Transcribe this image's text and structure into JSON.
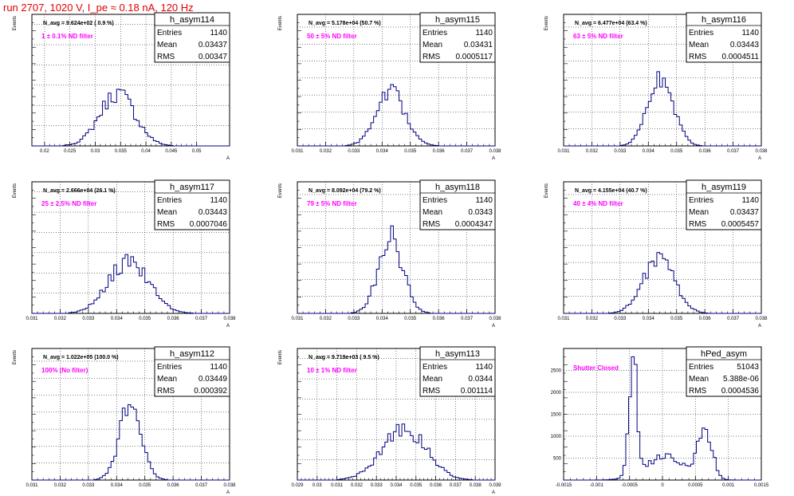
{
  "page": {
    "title": "run 2707,  1020 V, I_pe ≈ 0.18 nA, 120 Hz"
  },
  "colors": {
    "histogram_line": "#000080",
    "filter_text": "#ff00ff",
    "title_text": "#e00000",
    "frame": "#000000",
    "grid": "#000000"
  },
  "chart_data": [
    {
      "type": "histogram",
      "hist_name": "h_asym114",
      "navg": "N_avg = 9.624e+02 ( 0.9 %)",
      "filter_label": "1 ± 0.1% ND filter",
      "stats": {
        "entries_label": "Entries",
        "entries": "1140",
        "mean_label": "Mean",
        "mean": "0.03437",
        "rms_label": "RMS",
        "rms": "0.00347"
      },
      "ylabel": "Events",
      "xlabel": "A",
      "xlim": [
        0.0175,
        0.0565
      ],
      "x_ticks": [
        "0.02",
        "0.025",
        "0.03",
        "0.035",
        "0.04",
        "0.045",
        "0.05"
      ],
      "x_tick_values": [
        0.02,
        0.025,
        0.03,
        0.035,
        0.04,
        0.045,
        0.05
      ],
      "ylim": [
        0,
        130
      ],
      "grid": true,
      "peak": 52,
      "mean": 0.03437,
      "rms": 0.00347
    },
    {
      "type": "histogram",
      "hist_name": "h_asym115",
      "navg": "N_avg = 5.178e+04 (50.7 %)",
      "filter_label": "50 ± 5% ND filter",
      "stats": {
        "entries_label": "Entries",
        "entries": "1140",
        "mean_label": "Mean",
        "mean": "0.03431",
        "rms_label": "RMS",
        "rms": "0.0005117"
      },
      "ylabel": "Events",
      "xlabel": "A",
      "xlim": [
        0.031,
        0.038
      ],
      "x_ticks": [
        "0.031",
        "0.032",
        "0.033",
        "0.034",
        "0.035",
        "0.036",
        "0.037",
        "0.038"
      ],
      "x_tick_values": [
        0.031,
        0.032,
        0.033,
        0.034,
        0.035,
        0.036,
        0.037,
        0.038
      ],
      "ylim": [
        0,
        155
      ],
      "grid": true,
      "peak": 62,
      "mean": 0.03431,
      "rms": 0.0005117
    },
    {
      "type": "histogram",
      "hist_name": "h_asym116",
      "navg": "N_avg = 6.477e+04 (63.4 %)",
      "filter_label": "63 ± 5% ND filter",
      "stats": {
        "entries_label": "Entries",
        "entries": "1140",
        "mean_label": "Mean",
        "mean": "0.03443",
        "rms_label": "RMS",
        "rms": "0.0004511"
      },
      "ylabel": "Events",
      "xlabel": "A",
      "xlim": [
        0.031,
        0.038
      ],
      "x_ticks": [
        "0.031",
        "0.032",
        "0.033",
        "0.034",
        "0.035",
        "0.036",
        "0.037",
        "0.038"
      ],
      "x_tick_values": [
        0.031,
        0.032,
        0.033,
        0.034,
        0.035,
        0.036,
        0.037,
        0.038
      ],
      "ylim": [
        0,
        155
      ],
      "grid": true,
      "peak": 80,
      "mean": 0.03443,
      "rms": 0.0004511
    },
    {
      "type": "histogram",
      "hist_name": "h_asym117",
      "navg": "N_avg = 2.666e+04 (26.1 %)",
      "filter_label": "25 ± 2.5% ND filter",
      "stats": {
        "entries_label": "Entries",
        "entries": "1140",
        "mean_label": "Mean",
        "mean": "0.03443",
        "rms_label": "RMS",
        "rms": "0.0007046"
      },
      "ylabel": "Events",
      "xlabel": "A",
      "xlim": [
        0.031,
        0.038
      ],
      "x_ticks": [
        "0.031",
        "0.032",
        "0.033",
        "0.034",
        "0.035",
        "0.036",
        "0.037",
        "0.038"
      ],
      "x_tick_values": [
        0.031,
        0.032,
        0.033,
        0.034,
        0.035,
        0.036,
        0.037,
        0.038
      ],
      "ylim": [
        0,
        130
      ],
      "grid": true,
      "peak": 52,
      "mean": 0.03443,
      "rms": 0.0007046
    },
    {
      "type": "histogram",
      "hist_name": "h_asym118",
      "navg": "N_avg = 8.092e+04 (79.2 %)",
      "filter_label": "79 ± 5% ND filter",
      "stats": {
        "entries_label": "Entries",
        "entries": "1140",
        "mean_label": "Mean",
        "mean": "0.0343",
        "rms_label": "RMS",
        "rms": "0.0004347"
      },
      "ylabel": "Events",
      "xlabel": "A",
      "xlim": [
        0.031,
        0.038
      ],
      "x_ticks": [
        "0.031",
        "0.032",
        "0.033",
        "0.034",
        "0.035",
        "0.036",
        "0.037",
        "0.038"
      ],
      "x_tick_values": [
        0.031,
        0.032,
        0.033,
        0.034,
        0.035,
        0.036,
        0.037,
        0.038
      ],
      "ylim": [
        0,
        155
      ],
      "grid": true,
      "peak": 88,
      "mean": 0.0343,
      "rms": 0.0004347
    },
    {
      "type": "histogram",
      "hist_name": "h_asym119",
      "navg": "N_avg = 4.155e+04 (40.7 %)",
      "filter_label": "40 ± 4% ND filter",
      "stats": {
        "entries_label": "Entries",
        "entries": "1140",
        "mean_label": "Mean",
        "mean": "0.03437",
        "rms_label": "RMS",
        "rms": "0.0005457"
      },
      "ylabel": "Events",
      "xlabel": "A",
      "xlim": [
        0.031,
        0.038
      ],
      "x_ticks": [
        "0.031",
        "0.032",
        "0.033",
        "0.034",
        "0.035",
        "0.036",
        "0.037",
        "0.038"
      ],
      "x_tick_values": [
        0.031,
        0.032,
        0.033,
        0.034,
        0.035,
        0.036,
        0.037,
        0.038
      ],
      "ylim": [
        0,
        155
      ],
      "grid": true,
      "peak": 66,
      "mean": 0.03437,
      "rms": 0.0005457
    },
    {
      "type": "histogram",
      "hist_name": "h_asym112",
      "navg": "N_avg = 1.022e+05 (100.0 %)",
      "filter_label": "100% (No filter)",
      "stats": {
        "entries_label": "Entries",
        "entries": "1140",
        "mean_label": "Mean",
        "mean": "0.03449",
        "rms_label": "RMS",
        "rms": "0.000392"
      },
      "ylabel": "Events",
      "xlabel": "A",
      "xlim": [
        0.031,
        0.038
      ],
      "x_ticks": [
        "0.031",
        "0.032",
        "0.033",
        "0.034",
        "0.035",
        "0.036",
        "0.037",
        "0.038"
      ],
      "x_tick_values": [
        0.031,
        0.032,
        0.033,
        0.034,
        0.035,
        0.036,
        0.037,
        0.038
      ],
      "ylim": [
        0,
        155
      ],
      "grid": true,
      "peak": 87,
      "mean": 0.03449,
      "rms": 0.000392
    },
    {
      "type": "histogram",
      "hist_name": "h_asym113",
      "navg": "N_avg = 9.719e+03 ( 9.5 %)",
      "filter_label": "10 ± 1% ND filter",
      "stats": {
        "entries_label": "Entries",
        "entries": "1140",
        "mean_label": "Mean",
        "mean": "0.0344",
        "rms_label": "RMS",
        "rms": "0.001114"
      },
      "ylabel": "Events",
      "xlabel": "A",
      "xlim": [
        0.029,
        0.039
      ],
      "x_ticks": [
        "0.029",
        "0.03",
        "0.031",
        "0.032",
        "0.033",
        "0.034",
        "0.035",
        "0.036",
        "0.037",
        "0.038",
        "0.039"
      ],
      "x_tick_values": [
        0.029,
        0.03,
        0.031,
        0.032,
        0.033,
        0.034,
        0.035,
        0.036,
        0.037,
        0.038,
        0.039
      ],
      "ylim": [
        0,
        130
      ],
      "grid": true,
      "peak": 50,
      "mean": 0.0344,
      "rms": 0.001114
    },
    {
      "type": "histogram",
      "hist_name": "hPed_asym",
      "navg": "",
      "filter_label": "Shutter Closed",
      "stats": {
        "entries_label": "Entries",
        "entries": "51043",
        "mean_label": "Mean",
        "mean": "5.388e-06",
        "rms_label": "RMS",
        "rms": "0.0004536"
      },
      "ylabel": "",
      "xlabel": "",
      "xlim": [
        -0.0015,
        0.0015
      ],
      "x_ticks": [
        "-0.0015",
        "-0.001",
        "-0.0005",
        "0",
        "0.0005",
        "0.001",
        "0.0015"
      ],
      "x_tick_values": [
        -0.0015,
        -0.001,
        -0.0005,
        0,
        0.0005,
        0.001,
        0.0015
      ],
      "ylim": [
        0,
        3000
      ],
      "y_ticks": [
        "500",
        "1000",
        "1500",
        "2000",
        "2500"
      ],
      "y_tick_values": [
        500,
        1000,
        1500,
        2000,
        2500
      ],
      "grid": true,
      "bimodal": true,
      "peak": 2800,
      "mean": 5.388e-06,
      "rms": 0.0004536
    }
  ]
}
